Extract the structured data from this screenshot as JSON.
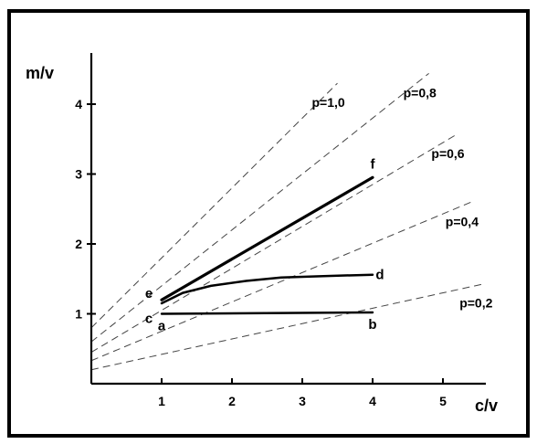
{
  "chart_data": {
    "type": "line",
    "title": "",
    "xlabel": "c/v",
    "ylabel": "m/v",
    "xlim": [
      0,
      5.6
    ],
    "ylim": [
      0,
      4.6
    ],
    "x_ticks": [
      1,
      2,
      3,
      4,
      5
    ],
    "y_ticks": [
      1,
      2,
      3,
      4
    ],
    "grid": false,
    "reference_lines": [
      {
        "label": "p=1,0",
        "intercept": 0.8,
        "slope": 1.0,
        "x_end": 3.5
      },
      {
        "label": "p=0,8",
        "intercept": 0.6,
        "slope": 0.8,
        "x_end": 4.8
      },
      {
        "label": "p=0,6",
        "intercept": 0.45,
        "slope": 0.6,
        "x_end": 5.2
      },
      {
        "label": "p=0,4",
        "intercept": 0.33,
        "slope": 0.42,
        "x_end": 5.4
      },
      {
        "label": "p=0,2",
        "intercept": 0.2,
        "slope": 0.22,
        "x_end": 5.6
      }
    ],
    "series": [
      {
        "points": [
          [
            1.0,
            1.0
          ],
          [
            4.0,
            1.02
          ]
        ],
        "width": 2.5
      },
      {
        "points": [
          [
            1.0,
            1.15
          ],
          [
            1.3,
            1.3
          ],
          [
            1.7,
            1.4
          ],
          [
            2.2,
            1.47
          ],
          [
            2.7,
            1.52
          ],
          [
            3.3,
            1.54
          ],
          [
            4.0,
            1.56
          ]
        ],
        "width": 2.5
      },
      {
        "points": [
          [
            1.0,
            1.2
          ],
          [
            4.0,
            2.95
          ]
        ],
        "width": 3.2
      }
    ],
    "point_labels": [
      {
        "text": "a",
        "x": 1.0,
        "y": 1.0,
        "pos": "below"
      },
      {
        "text": "b",
        "x": 4.0,
        "y": 1.02,
        "pos": "below"
      },
      {
        "text": "c",
        "x": 1.0,
        "y": 1.0,
        "pos": "left"
      },
      {
        "text": "e",
        "x": 1.0,
        "y": 1.2,
        "pos": "left-high"
      },
      {
        "text": "d",
        "x": 4.0,
        "y": 1.56,
        "pos": "right"
      },
      {
        "text": "f",
        "x": 4.0,
        "y": 2.95,
        "pos": "above"
      }
    ]
  }
}
